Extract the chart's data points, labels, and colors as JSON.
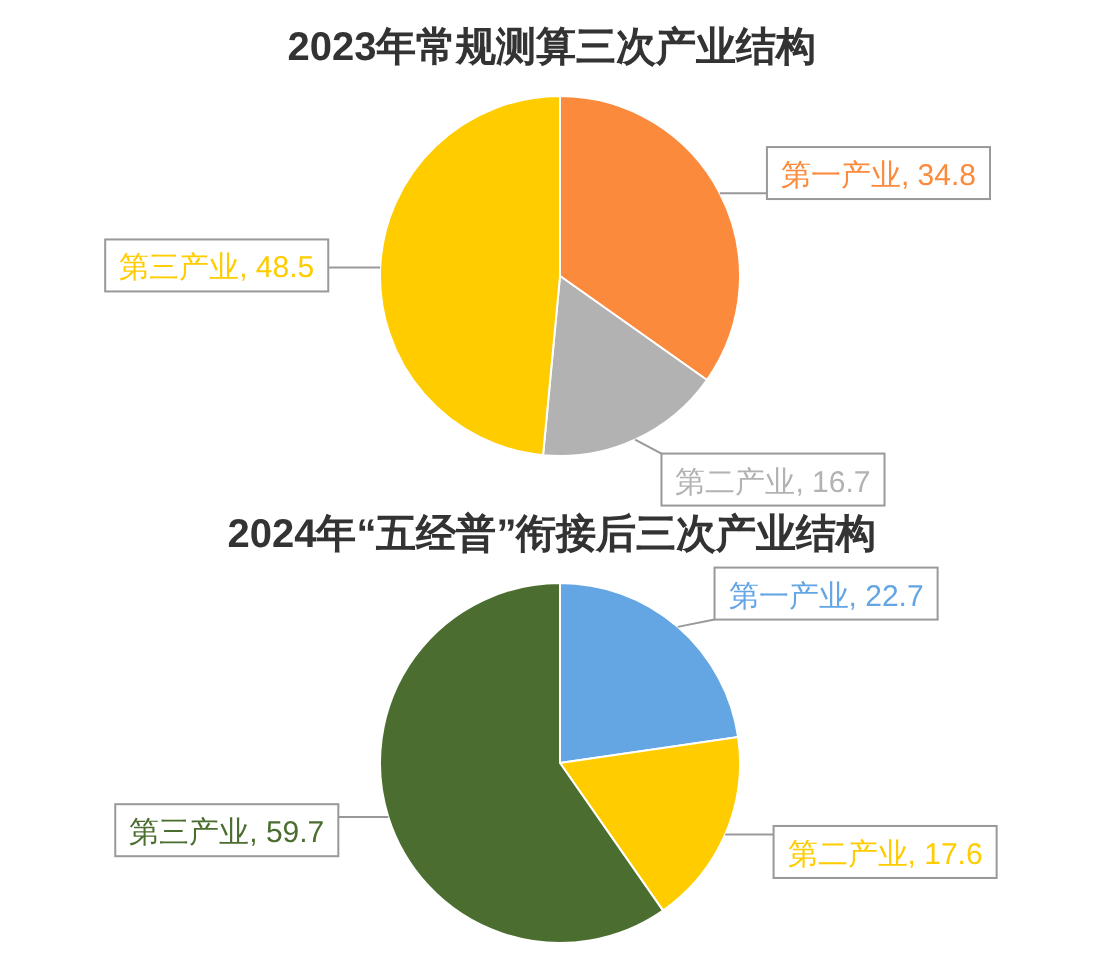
{
  "chart_data": [
    {
      "type": "pie",
      "title": "2023年常规测算三次产业结构",
      "categories": [
        "第一产业",
        "第二产业",
        "第三产业"
      ],
      "values": [
        34.8,
        16.7,
        48.5
      ],
      "colors": [
        "#fb8a3c",
        "#b2b2b2",
        "#ffcc00"
      ],
      "value_labels": [
        ", 34.8",
        ", 16.7",
        ", 48.5"
      ]
    },
    {
      "type": "pie",
      "title": "2024年“五经普”衔接后三次产业结构",
      "categories": [
        "第一产业",
        "第二产业",
        "第三产业"
      ],
      "values": [
        22.7,
        17.6,
        59.7
      ],
      "colors": [
        "#64a6e4",
        "#ffcc00",
        "#4b6e30"
      ],
      "value_labels": [
        ", 22.7",
        ", 17.6",
        ", 59.7"
      ]
    }
  ]
}
